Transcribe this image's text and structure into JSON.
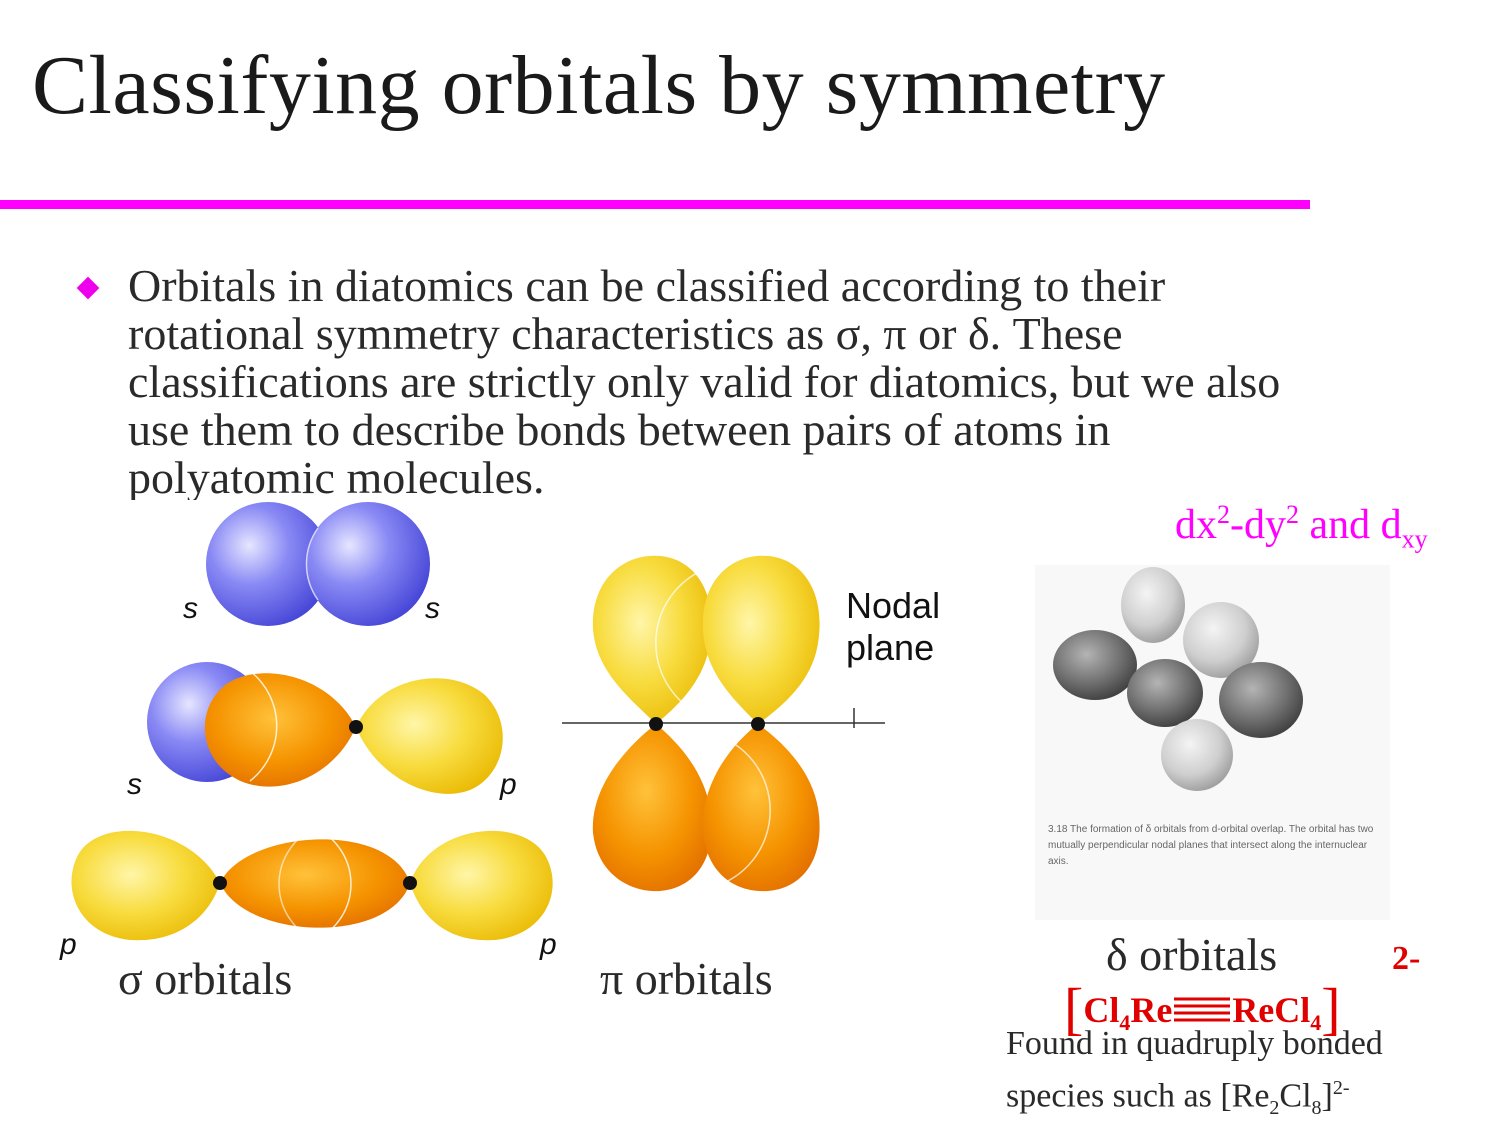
{
  "title": "Classifying orbitals by symmetry",
  "bullet": {
    "line1": "Orbitals in diatomics can be classified according to their",
    "line2": "rotational symmetry characteristics as σ, π or δ. These",
    "line3": "classifications are strictly only valid for diatomics, but we also",
    "line4": "use them to describe bonds between pairs of atoms in",
    "line5": "polyatomic molecules."
  },
  "delta_label": {
    "base1": "dx",
    "sup1": "2",
    "mid": "-dy",
    "sup2": "2",
    "and_d": " and d",
    "sub": "xy"
  },
  "sigma_figure": {
    "label_s1": "s",
    "label_s2": "s",
    "label_s3": "s",
    "label_p1": "p",
    "label_p2": "p",
    "label_p3": "p",
    "caption": "σ orbitals"
  },
  "pi_figure": {
    "plane_line1": "Nodal",
    "plane_line2": "plane",
    "caption": "π orbitals"
  },
  "delta_figure": {
    "fig_caption": "3.18 The formation of δ orbitals from d-orbital overlap. The orbital has two mutually perpendicular nodal planes that intersect along the internuclear axis.",
    "caption": "δ orbitals"
  },
  "formula": {
    "open": "[",
    "cl": "Cl",
    "cl_sub": "4",
    "re1": "Re",
    "re2": "ReCl",
    "re2_sub": "4",
    "close": "]",
    "charge": "2-"
  },
  "found": {
    "line1": "Found in quadruply bonded",
    "line2_pre": "species such as [Re",
    "sub1": "2",
    "cl": "Cl",
    "sub2": "8",
    "close": "]",
    "sup": "2-"
  },
  "colors": {
    "accent": "#ff00ff",
    "s_orbital": "#6f6ff0",
    "p_orbital_light": "#f5d63a",
    "p_orbital_dark": "#f08a00",
    "formula_red": "#e00000"
  }
}
